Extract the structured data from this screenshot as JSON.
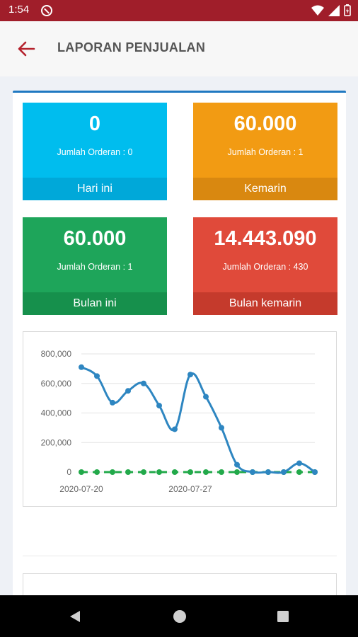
{
  "status_bar": {
    "time": "1:54"
  },
  "header": {
    "title": "LAPORAN PENJUALAN"
  },
  "tiles": [
    {
      "value": "0",
      "count_label": "Jumlah Orderan : 0",
      "period": "Hari ini",
      "color": "#00bdee",
      "footer_color": "#00a8d9"
    },
    {
      "value": "60.000",
      "count_label": "Jumlah Orderan : 1",
      "period": "Kemarin",
      "color": "#f29b13",
      "footer_color": "#d98810"
    },
    {
      "value": "60.000",
      "count_label": "Jumlah Orderan : 1",
      "period": "Bulan ini",
      "color": "#1ea55a",
      "footer_color": "#16904c"
    },
    {
      "value": "14.443.090",
      "count_label": "Jumlah Orderan : 430",
      "period": "Bulan kemarin",
      "color": "#e04a3a",
      "footer_color": "#c53a2c"
    }
  ],
  "chart_data": {
    "type": "line",
    "x": [
      "2020-07-20",
      "2020-07-21",
      "2020-07-22",
      "2020-07-23",
      "2020-07-24",
      "2020-07-25",
      "2020-07-26",
      "2020-07-27",
      "2020-07-28",
      "2020-07-29",
      "2020-07-30",
      "2020-07-31",
      "2020-08-01",
      "2020-08-02",
      "2020-08-03",
      "2020-08-04"
    ],
    "x_tick_labels": [
      "2020-07-20",
      "2020-07-27"
    ],
    "y_tick_labels": [
      "800,000",
      "600,000",
      "400,000",
      "200,000",
      "0"
    ],
    "ylim": [
      0,
      800000
    ],
    "grid": true,
    "series": [
      {
        "color": "#2e86c1",
        "values": [
          710000,
          650000,
          470000,
          550000,
          600000,
          450000,
          290000,
          660000,
          510000,
          300000,
          50000,
          0,
          0,
          0,
          60000,
          0
        ]
      },
      {
        "color": "#22a94a",
        "dashed": true,
        "values": [
          0,
          0,
          0,
          0,
          0,
          0,
          0,
          0,
          0,
          0,
          0,
          0,
          0,
          0,
          0,
          0
        ]
      }
    ]
  }
}
